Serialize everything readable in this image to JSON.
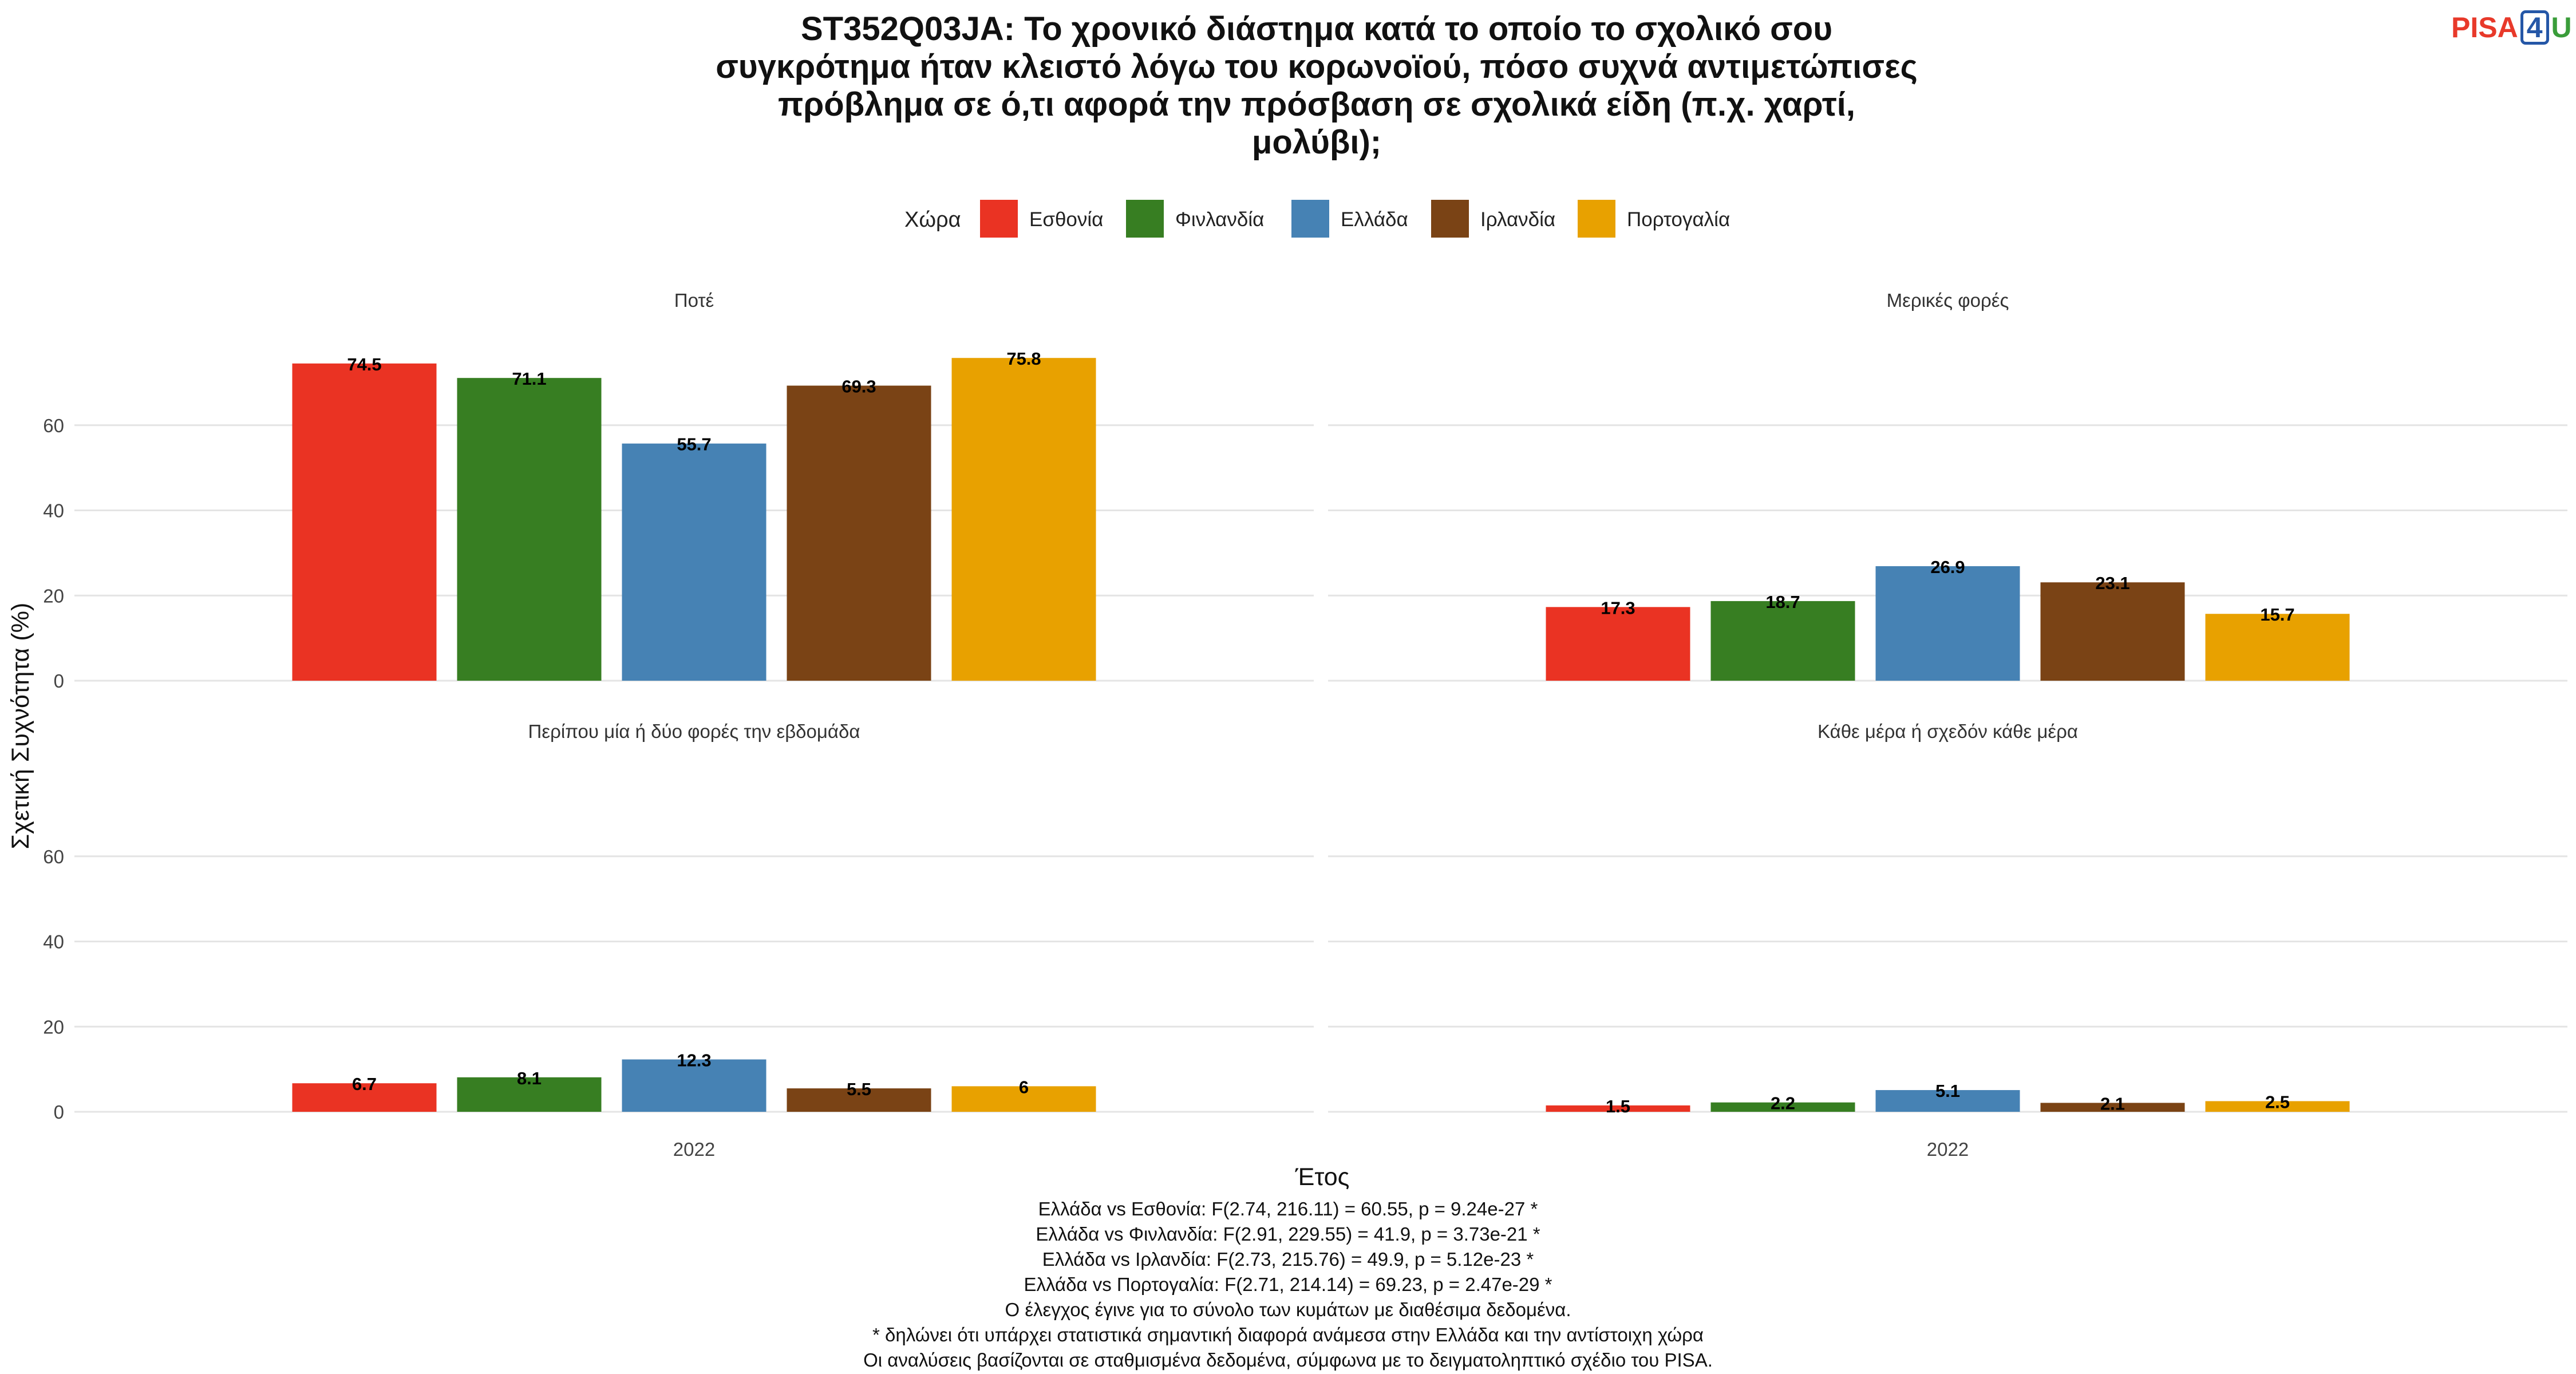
{
  "chart_data": {
    "type": "bar",
    "title_lines": [
      "ST352Q03JA: Το χρονικό διάστημα κατά το οποίο το σχολικό σου",
      "συγκρότημα ήταν κλειστό λόγω του κορωνοϊού, πόσο συχνά αντιμετώπισες",
      "πρόβλημα σε ό,τι αφορά την πρόσβαση σε σχολικά είδη (π.χ. χαρτί,",
      "μολύβι);"
    ],
    "xlabel": "Έτος",
    "ylabel": "Σχετική Συχνότητα (%)",
    "legend_title": "Χώρα",
    "legend_position": "top",
    "yticks": [
      0,
      20,
      40,
      60
    ],
    "ylim": [
      0,
      80
    ],
    "grid": true,
    "x_category": "2022",
    "series": [
      {
        "name": "Εσθονία",
        "color": "#ea3323"
      },
      {
        "name": "Φινλανδία",
        "color": "#377e22"
      },
      {
        "name": "Ελλάδα",
        "color": "#4682b4"
      },
      {
        "name": "Ιρλανδία",
        "color": "#7a4315"
      },
      {
        "name": "Πορτογαλία",
        "color": "#e8a100"
      }
    ],
    "panels": [
      {
        "title": "Ποτέ",
        "values": [
          74.5,
          71.1,
          55.7,
          69.3,
          75.8
        ],
        "labels": [
          "74.5",
          "71.1",
          "55.7",
          "69.3",
          "75.8"
        ]
      },
      {
        "title": "Μερικές φορές",
        "values": [
          17.3,
          18.7,
          26.9,
          23.1,
          15.7
        ],
        "labels": [
          "17.3",
          "18.7",
          "26.9",
          "23.1",
          "15.7"
        ]
      },
      {
        "title": "Περίπου μία ή δύο φορές την εβδομάδα",
        "values": [
          6.7,
          8.1,
          12.3,
          5.5,
          6
        ],
        "labels": [
          "6.7",
          "8.1",
          "12.3",
          "5.5",
          "6"
        ]
      },
      {
        "title": "Κάθε μέρα ή σχεδόν κάθε μέρα",
        "values": [
          1.5,
          2.2,
          5.1,
          2.1,
          2.5
        ],
        "labels": [
          "1.5",
          "2.2",
          "5.1",
          "2.1",
          "2.5"
        ]
      }
    ]
  },
  "caption_lines": [
    "Ελλάδα vs Εσθονία: F(2.74, 216.11) = 60.55, p = 9.24e-27 *",
    "Ελλάδα vs Φινλανδία: F(2.91, 229.55) = 41.9, p = 3.73e-21 *",
    "Ελλάδα vs Ιρλανδία: F(2.73, 215.76) = 49.9, p = 5.12e-23 *",
    "Ελλάδα vs Πορτογαλία: F(2.71, 214.14) = 69.23, p = 2.47e-29 *",
    "Ο έλεγχος έγινε για το σύνολο των κυμάτων με διαθέσιμα δεδομένα.",
    "* δηλώνει ότι υπάρχει στατιστικά σημαντική διαφορά ανάμεσα στην Ελλάδα και την αντίστοιχη χώρα",
    "Οι αναλύσεις βασίζονται σε σταθμισμένα δεδομένα, σύμφωνα με το δειγματοληπτικό σχέδιο του PISA."
  ],
  "logo": {
    "pisa": "PISA",
    "four": "4",
    "u": "U"
  }
}
